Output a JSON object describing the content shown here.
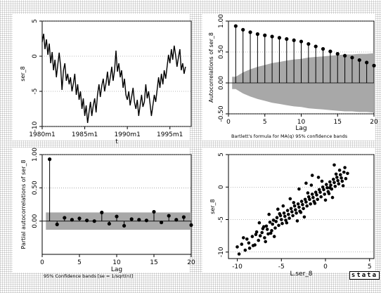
{
  "chart_data": [
    {
      "type": "line",
      "xlabel": "t",
      "ylabel": "ser_8",
      "xlim": [
        1980.0,
        1997.5
      ],
      "ylim": [
        -10,
        5
      ],
      "xticks": [
        1980,
        1985,
        1990,
        1995
      ],
      "xtick_labels": [
        "1980m1",
        "1985m1",
        "1990m1",
        "1995m1"
      ],
      "yticks": [
        -10,
        -5,
        0,
        5
      ],
      "series": [
        {
          "x": [
            1980.0,
            1980.17,
            1980.33,
            1980.5,
            1980.67,
            1980.83,
            1981.0,
            1981.17,
            1981.33,
            1981.5,
            1981.67,
            1981.83,
            1982.0,
            1982.17,
            1982.33,
            1982.5,
            1982.67,
            1982.83,
            1983.0,
            1983.17,
            1983.33,
            1983.5,
            1983.67,
            1983.83,
            1984.0,
            1984.17,
            1984.33,
            1984.5,
            1984.67,
            1984.83,
            1985.0,
            1985.17,
            1985.33,
            1985.5,
            1985.67,
            1985.83,
            1986.0,
            1986.17,
            1986.33,
            1986.5,
            1986.67,
            1986.83,
            1987.0,
            1987.17,
            1987.33,
            1987.5,
            1987.67,
            1987.83,
            1988.0,
            1988.17,
            1988.33,
            1988.5,
            1988.67,
            1988.83,
            1989.0,
            1989.17,
            1989.33,
            1989.5,
            1989.67,
            1989.83,
            1990.0,
            1990.17,
            1990.33,
            1990.5,
            1990.67,
            1990.83,
            1991.0,
            1991.17,
            1991.33,
            1991.5,
            1991.67,
            1991.83,
            1992.0,
            1992.17,
            1992.33,
            1992.5,
            1992.67,
            1992.83,
            1993.0,
            1993.17,
            1993.33,
            1993.5,
            1993.67,
            1993.83,
            1994.0,
            1994.17,
            1994.33,
            1994.5,
            1994.67,
            1994.83,
            1995.0,
            1995.17,
            1995.33,
            1995.5,
            1995.67,
            1995.83,
            1996.0,
            1996.17,
            1996.33,
            1996.5,
            1996.67,
            1996.83
          ],
          "values": [
            2.0,
            3.2,
            1.0,
            2.4,
            0.2,
            1.8,
            -1.0,
            0.6,
            -2.0,
            -0.5,
            -3.0,
            -1.2,
            0.5,
            -1.5,
            -4.8,
            -2.0,
            -1.0,
            -3.5,
            -2.5,
            -4.0,
            -3.0,
            -5.0,
            -3.8,
            -2.5,
            -5.5,
            -4.0,
            -6.2,
            -5.0,
            -7.5,
            -6.0,
            -8.5,
            -7.0,
            -9.5,
            -8.0,
            -6.5,
            -8.5,
            -7.0,
            -6.0,
            -8.0,
            -5.5,
            -4.0,
            -5.8,
            -4.2,
            -3.2,
            -5.0,
            -3.8,
            -2.2,
            -4.2,
            -3.0,
            -1.5,
            -3.5,
            -2.0,
            0.8,
            -2.2,
            -1.0,
            -3.0,
            -2.0,
            -4.5,
            -3.2,
            -5.5,
            -6.2,
            -5.0,
            -7.0,
            -5.8,
            -4.5,
            -6.5,
            -7.5,
            -6.2,
            -8.5,
            -7.0,
            -5.5,
            -7.2,
            -6.5,
            -4.0,
            -6.0,
            -5.0,
            -6.8,
            -8.5,
            -7.0,
            -5.5,
            -6.5,
            -4.8,
            -3.0,
            -4.5,
            -2.5,
            -4.0,
            -2.0,
            -3.2,
            -1.5,
            0.2,
            -1.0,
            1.0,
            -0.5,
            1.5,
            0.2,
            -1.5,
            -0.2,
            1.0,
            -2.0,
            -1.0,
            -2.5,
            -1.5
          ]
        }
      ]
    },
    {
      "type": "stem",
      "xlabel": "Lag",
      "ylabel": "Autocorrelations of ser_8",
      "note": "Bartlett's formula for MA(q) 95% confidence bands",
      "xlim": [
        0,
        20
      ],
      "ylim": [
        -0.5,
        1.0
      ],
      "xticks": [
        0,
        5,
        10,
        15,
        20
      ],
      "yticks": [
        -0.5,
        0.0,
        0.5,
        1.0
      ],
      "yticklabels": [
        "-0.50",
        "0.00",
        "0.50",
        "1.00"
      ],
      "lags": [
        1,
        2,
        3,
        4,
        5,
        6,
        7,
        8,
        9,
        10,
        11,
        12,
        13,
        14,
        15,
        16,
        17,
        18,
        19,
        20
      ],
      "values": [
        0.92,
        0.86,
        0.82,
        0.79,
        0.77,
        0.75,
        0.73,
        0.71,
        0.69,
        0.67,
        0.63,
        0.59,
        0.55,
        0.51,
        0.47,
        0.44,
        0.41,
        0.37,
        0.33,
        0.28
      ],
      "confidence_band": [
        0.1,
        0.17,
        0.22,
        0.26,
        0.29,
        0.32,
        0.34,
        0.36,
        0.38,
        0.39,
        0.41,
        0.42,
        0.43,
        0.44,
        0.45,
        0.46,
        0.46,
        0.47,
        0.47,
        0.48
      ]
    },
    {
      "type": "stem",
      "xlabel": "Lag",
      "ylabel": "Partial autocorrelations of ser_8",
      "note": "95% Confidence bands [se = 1/sqrt(n)]",
      "xlim": [
        0,
        20
      ],
      "ylim": [
        -0.5,
        1.0
      ],
      "xticks": [
        0,
        5,
        10,
        15,
        20
      ],
      "yticks": [
        0.0,
        0.5,
        1.0
      ],
      "yticklabels": [
        "0.00",
        "0.50",
        "1.00"
      ],
      "lags": [
        1,
        2,
        3,
        4,
        5,
        6,
        7,
        8,
        9,
        10,
        11,
        12,
        13,
        14,
        15,
        16,
        17,
        18,
        19,
        20
      ],
      "values": [
        0.93,
        -0.05,
        0.05,
        0.02,
        0.04,
        0.01,
        0.0,
        0.13,
        -0.04,
        0.07,
        -0.07,
        0.03,
        0.02,
        0.01,
        0.14,
        -0.02,
        0.08,
        0.02,
        0.06,
        -0.06
      ],
      "confidence_band": 0.13
    },
    {
      "type": "scatter",
      "xlabel": "L.ser_8",
      "ylabel": "ser_8",
      "xlim": [
        -11,
        5.5
      ],
      "ylim": [
        -11,
        5
      ],
      "xticks": [
        -10,
        -5,
        0,
        5
      ],
      "yticks": [
        -10,
        -5,
        0,
        5
      ],
      "points": [
        [
          -10.0,
          -9.2
        ],
        [
          -9.8,
          -10.3
        ],
        [
          -9.5,
          -8.8
        ],
        [
          -9.1,
          -9.7
        ],
        [
          -8.9,
          -8.0
        ],
        [
          -8.6,
          -9.4
        ],
        [
          -8.3,
          -7.6
        ],
        [
          -8.0,
          -8.9
        ],
        [
          -7.8,
          -6.9
        ],
        [
          -7.6,
          -8.2
        ],
        [
          -7.4,
          -7.5
        ],
        [
          -7.1,
          -6.4
        ],
        [
          -6.9,
          -7.8
        ],
        [
          -6.7,
          -6.0
        ],
        [
          -6.5,
          -7.2
        ],
        [
          -6.3,
          -5.4
        ],
        [
          -6.1,
          -6.7
        ],
        [
          -5.9,
          -5.1
        ],
        [
          -5.7,
          -6.3
        ],
        [
          -5.5,
          -4.7
        ],
        [
          -5.3,
          -5.9
        ],
        [
          -5.1,
          -4.4
        ],
        [
          -4.9,
          -5.6
        ],
        [
          -4.7,
          -4.0
        ],
        [
          -4.5,
          -5.1
        ],
        [
          -4.3,
          -3.6
        ],
        [
          -4.1,
          -4.8
        ],
        [
          -3.9,
          -3.3
        ],
        [
          -3.7,
          -4.4
        ],
        [
          -3.5,
          -2.9
        ],
        [
          -3.3,
          -4.0
        ],
        [
          -3.1,
          -2.6
        ],
        [
          -2.9,
          -3.7
        ],
        [
          -2.7,
          -2.2
        ],
        [
          -2.5,
          -3.3
        ],
        [
          -2.3,
          -1.9
        ],
        [
          -2.1,
          -2.9
        ],
        [
          -1.9,
          -1.5
        ],
        [
          -1.7,
          -2.6
        ],
        [
          -1.5,
          -1.1
        ],
        [
          -1.3,
          -2.2
        ],
        [
          -1.1,
          -0.8
        ],
        [
          -0.9,
          -1.9
        ],
        [
          -0.7,
          -0.4
        ],
        [
          -0.5,
          -1.5
        ],
        [
          -0.3,
          0.0
        ],
        [
          -0.1,
          -1.1
        ],
        [
          0.1,
          0.4
        ],
        [
          0.3,
          -0.7
        ],
        [
          0.5,
          0.8
        ],
        [
          0.7,
          -0.3
        ],
        [
          0.9,
          1.2
        ],
        [
          1.1,
          0.1
        ],
        [
          1.3,
          1.5
        ],
        [
          1.5,
          0.5
        ],
        [
          1.7,
          1.9
        ],
        [
          1.9,
          0.9
        ],
        [
          2.1,
          2.3
        ],
        [
          2.3,
          1.3
        ],
        [
          2.5,
          2.1
        ],
        [
          -8.7,
          -8.6
        ],
        [
          -7.9,
          -7.3
        ],
        [
          -7.2,
          -7.0
        ],
        [
          -6.6,
          -6.5
        ],
        [
          -6.0,
          -5.7
        ],
        [
          -5.6,
          -5.3
        ],
        [
          -5.0,
          -5.0
        ],
        [
          -4.6,
          -4.5
        ],
        [
          -4.2,
          -4.2
        ],
        [
          -3.8,
          -3.8
        ],
        [
          -3.4,
          -3.5
        ],
        [
          -3.0,
          -3.1
        ],
        [
          -2.6,
          -2.7
        ],
        [
          -2.2,
          -2.3
        ],
        [
          -1.8,
          -1.9
        ],
        [
          -1.4,
          -1.6
        ],
        [
          -1.0,
          -1.2
        ],
        [
          -0.6,
          -0.8
        ],
        [
          -0.2,
          -0.4
        ],
        [
          0.2,
          -0.1
        ],
        [
          0.6,
          0.3
        ],
        [
          1.0,
          0.7
        ],
        [
          1.4,
          1.0
        ],
        [
          1.8,
          1.4
        ],
        [
          -8.2,
          -9.0
        ],
        [
          -7.0,
          -6.1
        ],
        [
          -6.2,
          -7.1
        ],
        [
          -5.2,
          -4.1
        ],
        [
          -4.4,
          -5.5
        ],
        [
          -3.6,
          -2.4
        ],
        [
          -2.8,
          -3.9
        ],
        [
          -2.0,
          -0.9
        ],
        [
          -1.2,
          -2.5
        ],
        [
          -0.4,
          0.9
        ],
        [
          0.4,
          -1.0
        ],
        [
          1.2,
          2.0
        ],
        [
          2.0,
          0.2
        ],
        [
          -9.3,
          -7.8
        ],
        [
          -6.8,
          -8.4
        ],
        [
          -5.4,
          -3.4
        ],
        [
          -3.2,
          -5.2
        ],
        [
          -1.6,
          0.3
        ],
        [
          0.0,
          -2.0
        ],
        [
          1.6,
          2.6
        ],
        [
          -4.0,
          -1.8
        ],
        [
          -2.4,
          -4.6
        ],
        [
          -0.8,
          1.5
        ],
        [
          0.8,
          -1.6
        ],
        [
          2.2,
          3.0
        ],
        [
          -7.5,
          -5.5
        ],
        [
          -5.8,
          -7.6
        ],
        [
          -4.8,
          -2.9
        ],
        [
          -3.0,
          -0.3
        ],
        [
          -1.5,
          1.8
        ],
        [
          0.5,
          -0.1
        ],
        [
          1.0,
          3.4
        ],
        [
          -6.4,
          -4.2
        ],
        [
          -2.2,
          0.6
        ]
      ]
    }
  ],
  "watermark": "stata"
}
